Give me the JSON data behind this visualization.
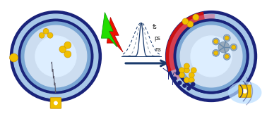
{
  "fig_width": 3.78,
  "fig_height": 1.62,
  "dpi": 100,
  "bg_color": "#ffffff",
  "arrow_color": "#1a3a6c",
  "labels": [
    "fs",
    "ps",
    "ns"
  ],
  "label_fontsize": 5.5,
  "outer_ring_color": "#1a237a",
  "membrane_color": "#7ba7d4",
  "membrane_light": "#a8c8e8",
  "inner_color": "#ccddf0",
  "inner_center_color": "#ddeeff",
  "red_burst_color": "#cc1111",
  "pink_color": "#dd6688",
  "gold_color": "#f0c000",
  "gold_dark": "#c89000",
  "blue_dot_color": "#1a237a",
  "gray_molecule": "#99aabb",
  "glow_color": "#b8ddff"
}
